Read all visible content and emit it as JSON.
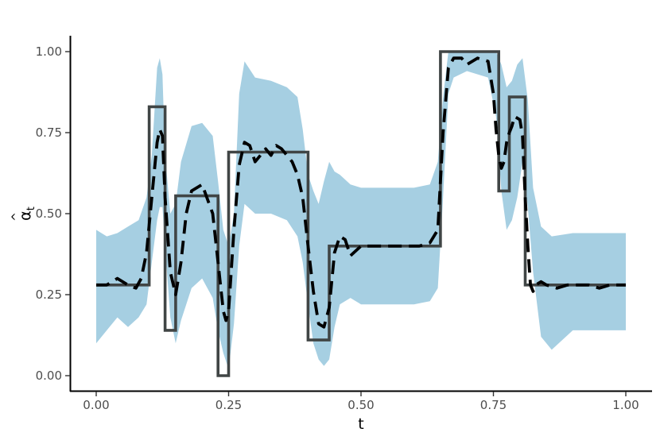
{
  "chart_data": {
    "type": "line",
    "xlabel": "t",
    "ylabel_base": "α",
    "ylabel_hat": "^",
    "ylabel_sub": "t",
    "xlim": [
      0,
      1
    ],
    "ylim": [
      0,
      1
    ],
    "x_ticks": [
      0,
      0.25,
      0.5,
      0.75,
      1.0
    ],
    "x_tick_labels": [
      "0.00",
      "0.25",
      "0.50",
      "0.75",
      "1.00"
    ],
    "y_ticks": [
      0,
      0.25,
      0.5,
      0.75,
      1.0
    ],
    "y_tick_labels": [
      "0.00",
      "0.25",
      "0.50",
      "0.75",
      "1.00"
    ],
    "grid": false,
    "legend": "none",
    "colors": {
      "band": "#a6cfe2",
      "step": "#404545",
      "estimate": "#000000"
    },
    "series": [
      {
        "kind": "step",
        "breaks": [
          0,
          0.1,
          0.13,
          0.15,
          0.23,
          0.25,
          0.4,
          0.44,
          0.65,
          0.76,
          0.78,
          0.81,
          1.0
        ],
        "values": [
          0.28,
          0.83,
          0.14,
          0.555,
          0.0,
          0.69,
          0.11,
          0.4,
          1.0,
          0.57,
          0.86,
          0.28
        ]
      },
      {
        "kind": "dashed",
        "x": [
          0.0,
          0.02,
          0.04,
          0.06,
          0.075,
          0.085,
          0.095,
          0.105,
          0.115,
          0.12,
          0.125,
          0.13,
          0.14,
          0.15,
          0.16,
          0.17,
          0.18,
          0.2,
          0.22,
          0.23,
          0.24,
          0.245,
          0.25,
          0.26,
          0.27,
          0.28,
          0.29,
          0.3,
          0.31,
          0.32,
          0.33,
          0.34,
          0.35,
          0.36,
          0.37,
          0.38,
          0.39,
          0.4,
          0.41,
          0.42,
          0.43,
          0.44,
          0.45,
          0.46,
          0.47,
          0.48,
          0.5,
          0.52,
          0.55,
          0.58,
          0.61,
          0.63,
          0.645,
          0.655,
          0.665,
          0.675,
          0.69,
          0.7,
          0.72,
          0.74,
          0.75,
          0.755,
          0.76,
          0.765,
          0.77,
          0.775,
          0.78,
          0.785,
          0.79,
          0.8,
          0.805,
          0.81,
          0.815,
          0.82,
          0.825,
          0.83,
          0.84,
          0.85,
          0.87,
          0.89,
          0.91,
          0.93,
          0.95,
          0.97,
          1.0
        ],
        "y": [
          0.28,
          0.28,
          0.3,
          0.28,
          0.27,
          0.3,
          0.38,
          0.55,
          0.72,
          0.76,
          0.74,
          0.55,
          0.32,
          0.25,
          0.35,
          0.5,
          0.57,
          0.59,
          0.5,
          0.35,
          0.2,
          0.17,
          0.2,
          0.45,
          0.65,
          0.72,
          0.71,
          0.66,
          0.68,
          0.7,
          0.68,
          0.71,
          0.7,
          0.68,
          0.66,
          0.62,
          0.55,
          0.4,
          0.26,
          0.16,
          0.15,
          0.21,
          0.38,
          0.43,
          0.42,
          0.37,
          0.4,
          0.4,
          0.4,
          0.4,
          0.4,
          0.41,
          0.45,
          0.75,
          0.95,
          0.98,
          0.98,
          0.96,
          0.98,
          0.97,
          0.87,
          0.76,
          0.68,
          0.64,
          0.66,
          0.72,
          0.75,
          0.77,
          0.8,
          0.79,
          0.74,
          0.55,
          0.4,
          0.28,
          0.26,
          0.28,
          0.29,
          0.28,
          0.27,
          0.28,
          0.28,
          0.28,
          0.27,
          0.28,
          0.28
        ]
      },
      {
        "kind": "band",
        "x": [
          0.0,
          0.02,
          0.04,
          0.06,
          0.08,
          0.095,
          0.105,
          0.115,
          0.12,
          0.125,
          0.13,
          0.14,
          0.15,
          0.16,
          0.18,
          0.2,
          0.22,
          0.23,
          0.24,
          0.25,
          0.26,
          0.27,
          0.28,
          0.3,
          0.33,
          0.36,
          0.38,
          0.39,
          0.4,
          0.41,
          0.42,
          0.43,
          0.44,
          0.45,
          0.46,
          0.48,
          0.5,
          0.55,
          0.6,
          0.63,
          0.645,
          0.655,
          0.665,
          0.675,
          0.7,
          0.74,
          0.755,
          0.765,
          0.775,
          0.785,
          0.795,
          0.805,
          0.815,
          0.825,
          0.84,
          0.86,
          0.9,
          0.95,
          1.0
        ],
        "lower": [
          0.1,
          0.14,
          0.18,
          0.15,
          0.18,
          0.22,
          0.35,
          0.48,
          0.52,
          0.52,
          0.4,
          0.18,
          0.1,
          0.17,
          0.27,
          0.3,
          0.24,
          0.14,
          0.07,
          0.02,
          0.16,
          0.4,
          0.53,
          0.5,
          0.5,
          0.48,
          0.43,
          0.35,
          0.22,
          0.1,
          0.05,
          0.03,
          0.05,
          0.15,
          0.22,
          0.24,
          0.22,
          0.22,
          0.22,
          0.23,
          0.27,
          0.55,
          0.87,
          0.92,
          0.94,
          0.92,
          0.8,
          0.57,
          0.45,
          0.48,
          0.55,
          0.66,
          0.52,
          0.32,
          0.12,
          0.08,
          0.14,
          0.14,
          0.14
        ],
        "upper": [
          0.45,
          0.43,
          0.44,
          0.46,
          0.48,
          0.55,
          0.68,
          0.95,
          0.98,
          0.93,
          0.68,
          0.5,
          0.53,
          0.66,
          0.77,
          0.78,
          0.74,
          0.6,
          0.45,
          0.4,
          0.5,
          0.87,
          0.97,
          0.92,
          0.91,
          0.89,
          0.86,
          0.76,
          0.62,
          0.57,
          0.53,
          0.6,
          0.66,
          0.63,
          0.62,
          0.59,
          0.58,
          0.58,
          0.58,
          0.59,
          0.66,
          0.86,
          1.0,
          1.0,
          1.0,
          1.0,
          1.0,
          0.96,
          0.89,
          0.91,
          0.96,
          0.98,
          0.85,
          0.58,
          0.46,
          0.43,
          0.44,
          0.44,
          0.44
        ]
      }
    ]
  }
}
